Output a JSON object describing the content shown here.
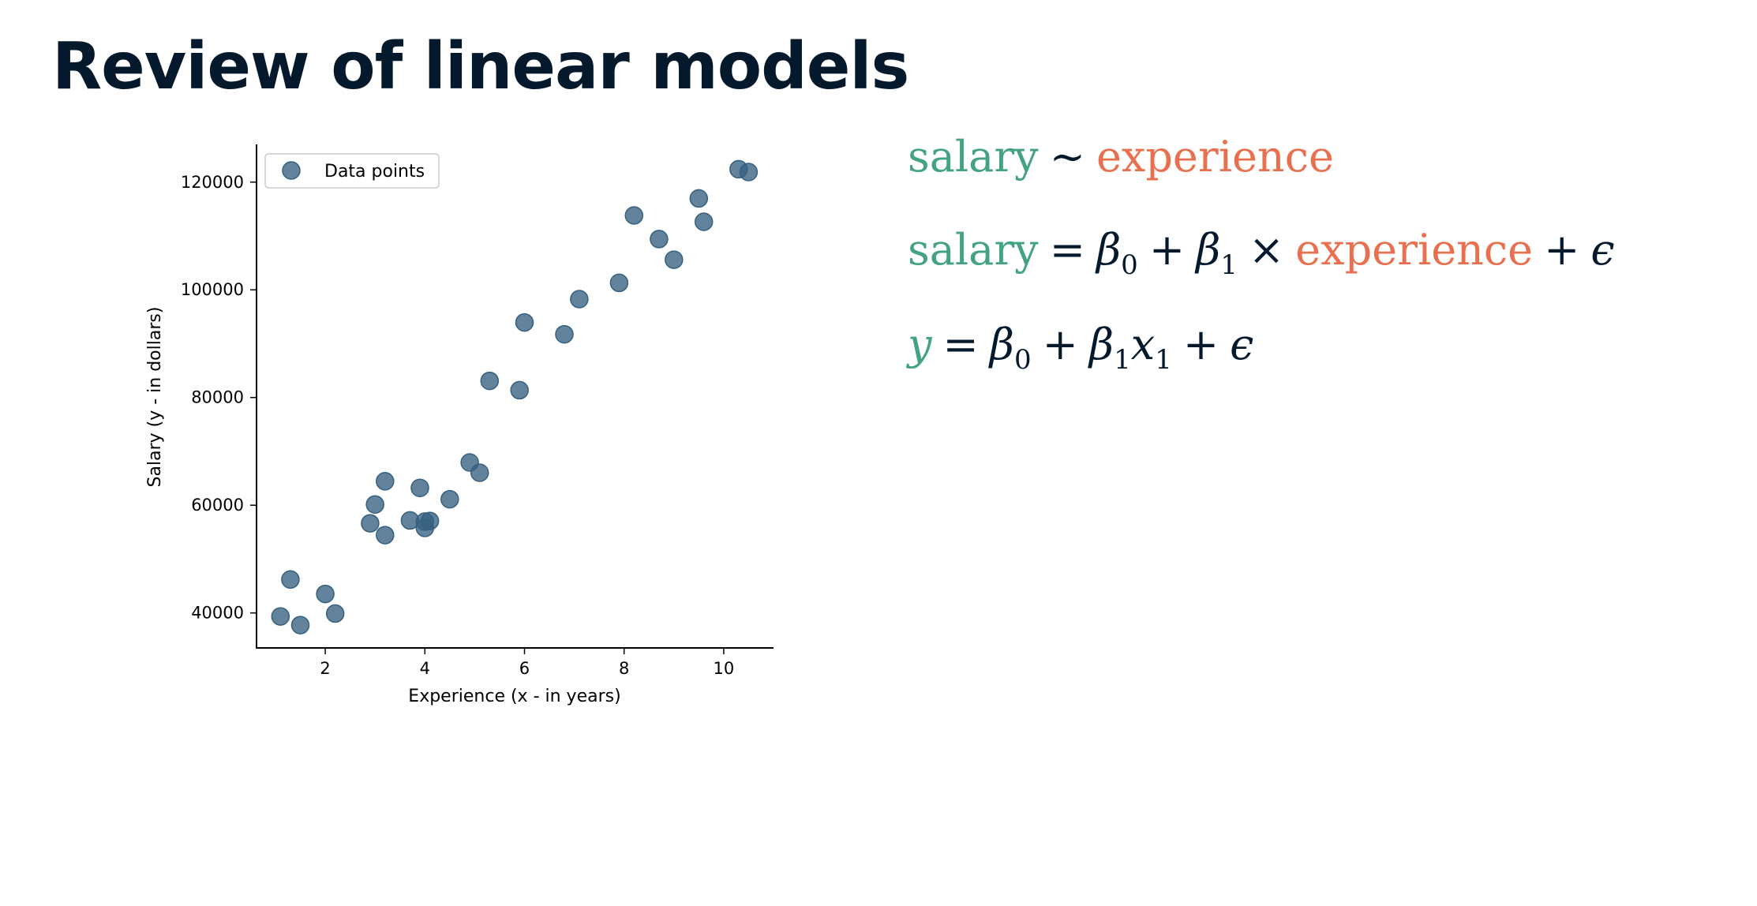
{
  "title": "Review of linear models",
  "equations": {
    "line1": {
      "lhs": "salary",
      "op": "∼",
      "rhs": "experience"
    },
    "line2": {
      "lhs": "salary",
      "eq": "=",
      "b0": "β",
      "b0sub": "0",
      "plus1": "+",
      "b1": "β",
      "b1sub": "1",
      "times": "×",
      "var": "experience",
      "plus2": "+",
      "err": "ϵ"
    },
    "line3": {
      "lhs": "y",
      "eq": "=",
      "b0": "β",
      "b0sub": "0",
      "plus1": "+",
      "b1": "β",
      "b1sub": "1",
      "x": "x",
      "xsub": "1",
      "plus2": "+",
      "err": "ϵ"
    }
  },
  "colors": {
    "title": "#05192d",
    "green": "#43a284",
    "orange": "#e9704f",
    "point": "#36607f"
  },
  "chart_data": {
    "type": "scatter",
    "xlabel": "Experience (x - in years)",
    "ylabel": "Salary (y - in dollars)",
    "xlim": [
      0.62,
      11.0
    ],
    "ylim": [
      33500,
      127000
    ],
    "xticks": [
      2,
      4,
      6,
      8,
      10
    ],
    "yticks": [
      40000,
      60000,
      80000,
      100000,
      120000
    ],
    "grid": false,
    "legend": {
      "position": "top-left",
      "entries": [
        "Data points"
      ]
    },
    "series": [
      {
        "name": "Data points",
        "points": [
          [
            1.1,
            39343
          ],
          [
            1.3,
            46205
          ],
          [
            1.5,
            37731
          ],
          [
            2.0,
            43525
          ],
          [
            2.2,
            39891
          ],
          [
            2.9,
            56642
          ],
          [
            3.0,
            60150
          ],
          [
            3.2,
            54445
          ],
          [
            3.2,
            64445
          ],
          [
            3.7,
            57189
          ],
          [
            3.9,
            63218
          ],
          [
            4.0,
            55794
          ],
          [
            4.0,
            56957
          ],
          [
            4.1,
            57081
          ],
          [
            4.5,
            61111
          ],
          [
            4.9,
            67938
          ],
          [
            5.1,
            66029
          ],
          [
            5.3,
            83088
          ],
          [
            5.9,
            81363
          ],
          [
            6.0,
            93940
          ],
          [
            6.8,
            91738
          ],
          [
            7.1,
            98273
          ],
          [
            7.9,
            101302
          ],
          [
            8.2,
            113812
          ],
          [
            8.7,
            109431
          ],
          [
            9.0,
            105582
          ],
          [
            9.5,
            116969
          ],
          [
            9.6,
            112635
          ],
          [
            10.3,
            122391
          ],
          [
            10.5,
            121872
          ]
        ]
      }
    ]
  }
}
